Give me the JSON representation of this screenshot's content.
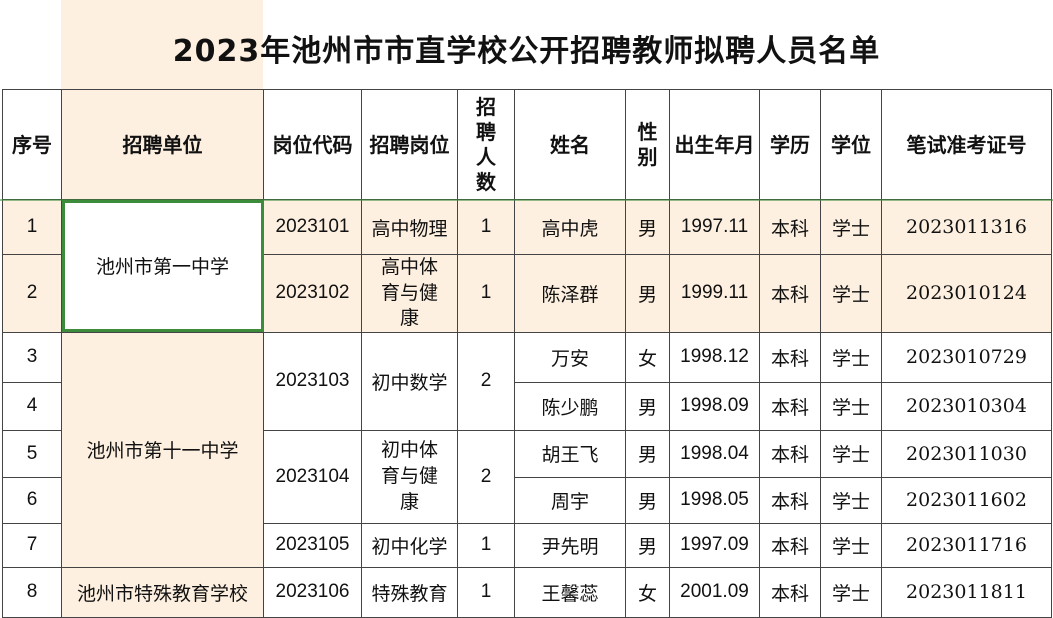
{
  "title": "2023年池州市市直学校公开招聘教师拟聘人员名单",
  "headers": {
    "seq": "序号",
    "unit": "招聘单位",
    "code": "岗位代码",
    "post": "招聘岗位",
    "count": "招聘人数",
    "name": "姓名",
    "gender": "性别",
    "birth": "出生年月",
    "edu": "学历",
    "degree": "学位",
    "exam_id": "笔试准考证号"
  },
  "units": {
    "u1": "池州市第一中学",
    "u2": "池州市第十一中学",
    "u3": "池州市特殊教育学校"
  },
  "positions": {
    "p1": {
      "code": "2023101",
      "post": "高中物理",
      "count": "1"
    },
    "p2": {
      "code": "2023102",
      "post": "高中体育与健康",
      "count": "1"
    },
    "p3": {
      "code": "2023103",
      "post": "初中数学",
      "count": "2"
    },
    "p4": {
      "code": "2023104",
      "post": "初中体育与健康",
      "count": "2"
    },
    "p5": {
      "code": "2023105",
      "post": "初中化学",
      "count": "1"
    },
    "p6": {
      "code": "2023106",
      "post": "特殊教育",
      "count": "1"
    }
  },
  "rows": [
    {
      "seq": "1",
      "name": "高中虎",
      "gender": "男",
      "birth": "1997.11",
      "edu": "本科",
      "degree": "学士",
      "exam_id": "2023011316"
    },
    {
      "seq": "2",
      "name": "陈泽群",
      "gender": "男",
      "birth": "1999.11",
      "edu": "本科",
      "degree": "学士",
      "exam_id": "2023010124"
    },
    {
      "seq": "3",
      "name": "万安",
      "gender": "女",
      "birth": "1998.12",
      "edu": "本科",
      "degree": "学士",
      "exam_id": "2023010729"
    },
    {
      "seq": "4",
      "name": "陈少鹏",
      "gender": "男",
      "birth": "1998.09",
      "edu": "本科",
      "degree": "学士",
      "exam_id": "2023010304"
    },
    {
      "seq": "5",
      "name": "胡王飞",
      "gender": "男",
      "birth": "1998.04",
      "edu": "本科",
      "degree": "学士",
      "exam_id": "2023011030"
    },
    {
      "seq": "6",
      "name": "周宇",
      "gender": "男",
      "birth": "1998.05",
      "edu": "本科",
      "degree": "学士",
      "exam_id": "2023011602"
    },
    {
      "seq": "7",
      "name": "尹先明",
      "gender": "男",
      "birth": "1997.09",
      "edu": "本科",
      "degree": "学士",
      "exam_id": "2023011716"
    },
    {
      "seq": "8",
      "name": "王馨蕊",
      "gender": "女",
      "birth": "2001.09",
      "edu": "本科",
      "degree": "学士",
      "exam_id": "2023011811"
    }
  ],
  "colors": {
    "highlight": "#fdf0e0",
    "selection": "#3c8c3c",
    "border": "#444444"
  }
}
